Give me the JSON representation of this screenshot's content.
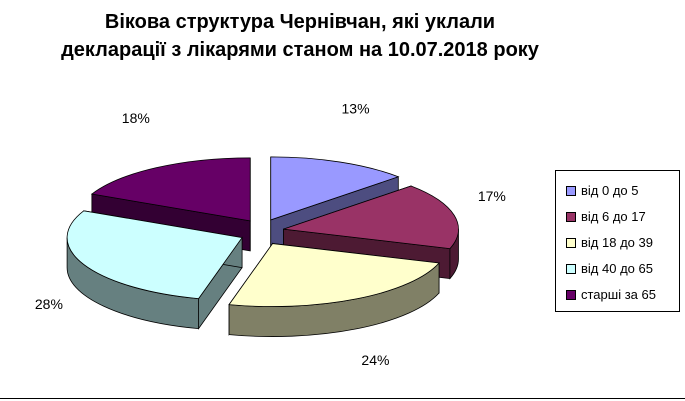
{
  "chart_data": {
    "type": "pie",
    "title_line1": "Вікова структура Чернівчан, які уклали",
    "title_line2": "декларації з лікарями станом на 10.07.2018 року",
    "slices": [
      {
        "label": "від 0 до 5",
        "value": 13,
        "value_label": "13%",
        "color": "#9999ff"
      },
      {
        "label": "від 6 до 17",
        "value": 17,
        "value_label": "17%",
        "color": "#993366"
      },
      {
        "label": "від 18 до 39",
        "value": 24,
        "value_label": "24%",
        "color": "#ffffcc"
      },
      {
        "label": "від 40 до 65",
        "value": 28,
        "value_label": "28%",
        "color": "#ccffff"
      },
      {
        "label": "старші за 65",
        "value": 18,
        "value_label": "18%",
        "color": "#660066"
      }
    ],
    "legend_position": "right",
    "style": "exploded-3d"
  }
}
